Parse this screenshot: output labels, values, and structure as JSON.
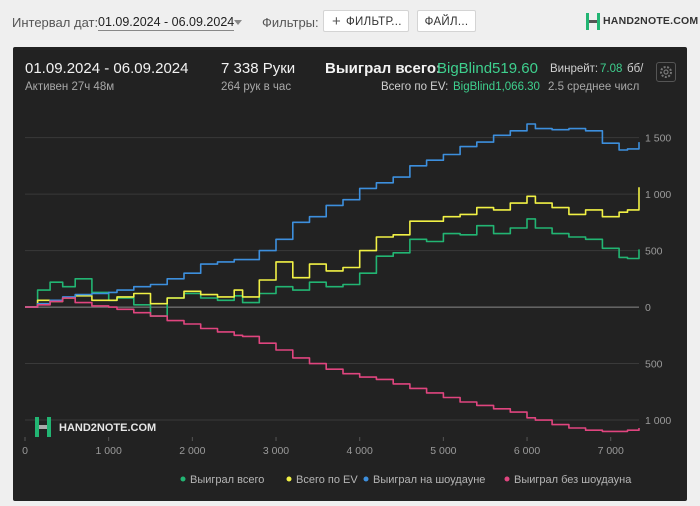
{
  "topbar": {
    "interval_label": "Интервал дат:",
    "interval_value": "01.09.2024 - 06.09.2024",
    "filters_label": "Фильтры:",
    "filter_button": "ФИЛЬТР...",
    "file_button": "ФАЙЛ..."
  },
  "logo": {
    "top_text": "HAND2NOTE.COM",
    "watermark_text": "HAND2NOTE.COM"
  },
  "stats": {
    "date_range": "01.09.2024 - 06.09.2024",
    "active": "Активен 27ч 48м",
    "hands": "7 338 Руки",
    "hands_per_hour": "264 рук в час",
    "won_total_label": "Выиграл всего:",
    "won_total_value": "BigBlind519.60",
    "ev_label": "Всего по EV:",
    "ev_value": "BigBlind1,066.30",
    "winrate_label": "Винрейт:",
    "winrate_value": "7.08",
    "winrate_unit": "бб/",
    "avg_label": "2.5 среднее числ"
  },
  "colors": {
    "won_total": "#22b573",
    "ev": "#f1f145",
    "showdown": "#3d8fdd",
    "non_showdown": "#e0457f",
    "panel": "#222222",
    "accent_green": "#3ed08e"
  },
  "icons": {
    "settings": "gear-icon",
    "plus": "plus-icon",
    "logo": "hand2note-logo-icon"
  },
  "chart_data": {
    "type": "line",
    "x_ticks": [
      0,
      1000,
      2000,
      3000,
      4000,
      5000,
      6000,
      7000
    ],
    "x_tick_labels": [
      "0",
      "1 000",
      "2 000",
      "3 000",
      "4 000",
      "5 000",
      "6 000",
      "7 000"
    ],
    "y_ticks": [
      1500,
      1000,
      500,
      0,
      -500,
      -1000
    ],
    "y_tick_labels": [
      "1 500",
      "1 000",
      "500",
      "0",
      "500",
      "1 000"
    ],
    "xlim": [
      0,
      7338
    ],
    "ylim": [
      -1150,
      1700
    ],
    "grid": true,
    "legend_position": "bottom",
    "series": [
      {
        "name": "Выиграл всего",
        "color_key": "won_total",
        "x": [
          0,
          150,
          300,
          450,
          600,
          800,
          1000,
          1100,
          1300,
          1500,
          1700,
          1900,
          2100,
          2300,
          2500,
          2600,
          2800,
          3000,
          3200,
          3400,
          3600,
          3800,
          4000,
          4200,
          4400,
          4600,
          4800,
          5000,
          5200,
          5400,
          5600,
          5800,
          6000,
          6100,
          6300,
          6500,
          6700,
          6900,
          7100,
          7200,
          7338
        ],
        "y": [
          0,
          150,
          220,
          180,
          250,
          130,
          60,
          80,
          20,
          -80,
          80,
          120,
          80,
          60,
          100,
          40,
          120,
          180,
          150,
          220,
          180,
          200,
          300,
          450,
          480,
          600,
          580,
          650,
          640,
          720,
          650,
          700,
          780,
          700,
          650,
          620,
          600,
          520,
          440,
          430,
          510
        ]
      },
      {
        "name": "Всего по EV",
        "color_key": "ev",
        "x": [
          0,
          150,
          300,
          450,
          600,
          800,
          1000,
          1100,
          1300,
          1500,
          1700,
          1900,
          2100,
          2300,
          2500,
          2600,
          2800,
          3000,
          3200,
          3400,
          3600,
          3800,
          4000,
          4200,
          4400,
          4600,
          4800,
          5000,
          5200,
          5400,
          5600,
          5800,
          6000,
          6100,
          6300,
          6500,
          6700,
          6900,
          7100,
          7200,
          7338
        ],
        "y": [
          0,
          60,
          50,
          80,
          100,
          60,
          60,
          90,
          120,
          30,
          80,
          140,
          110,
          90,
          150,
          90,
          240,
          400,
          260,
          380,
          320,
          350,
          500,
          620,
          640,
          760,
          760,
          800,
          820,
          880,
          860,
          920,
          980,
          920,
          880,
          820,
          860,
          800,
          840,
          860,
          1060
        ]
      },
      {
        "name": "Выиграл на шоудауне",
        "color_key": "showdown",
        "x": [
          0,
          150,
          300,
          450,
          600,
          800,
          1000,
          1100,
          1300,
          1500,
          1700,
          1900,
          2100,
          2300,
          2500,
          2600,
          2800,
          3000,
          3200,
          3400,
          3600,
          3800,
          4000,
          4200,
          4400,
          4600,
          4800,
          5000,
          5200,
          5400,
          5600,
          5800,
          6000,
          6100,
          6300,
          6500,
          6700,
          6900,
          7100,
          7200,
          7338
        ],
        "y": [
          0,
          30,
          60,
          90,
          110,
          120,
          130,
          150,
          180,
          200,
          250,
          300,
          380,
          400,
          420,
          420,
          500,
          600,
          750,
          800,
          900,
          950,
          1050,
          1100,
          1150,
          1250,
          1300,
          1350,
          1420,
          1460,
          1520,
          1560,
          1620,
          1580,
          1570,
          1580,
          1560,
          1450,
          1390,
          1400,
          1460
        ]
      },
      {
        "name": "Выиграл без шоудауна",
        "color_key": "non_showdown",
        "x": [
          0,
          150,
          300,
          450,
          600,
          800,
          1000,
          1100,
          1300,
          1500,
          1700,
          1900,
          2100,
          2300,
          2500,
          2600,
          2800,
          3000,
          3200,
          3400,
          3600,
          3800,
          4000,
          4200,
          4400,
          4600,
          4800,
          5000,
          5200,
          5400,
          5600,
          5800,
          6000,
          6100,
          6300,
          6500,
          6700,
          6900,
          7100,
          7200,
          7338
        ],
        "y": [
          0,
          20,
          50,
          80,
          40,
          10,
          0,
          -20,
          -50,
          -80,
          -120,
          -150,
          -190,
          -220,
          -250,
          -260,
          -320,
          -380,
          -450,
          -500,
          -550,
          -590,
          -620,
          -640,
          -680,
          -720,
          -760,
          -800,
          -840,
          -870,
          -900,
          -930,
          -980,
          -1000,
          -1040,
          -1070,
          -1090,
          -1100,
          -1100,
          -1090,
          -1070
        ]
      }
    ]
  }
}
